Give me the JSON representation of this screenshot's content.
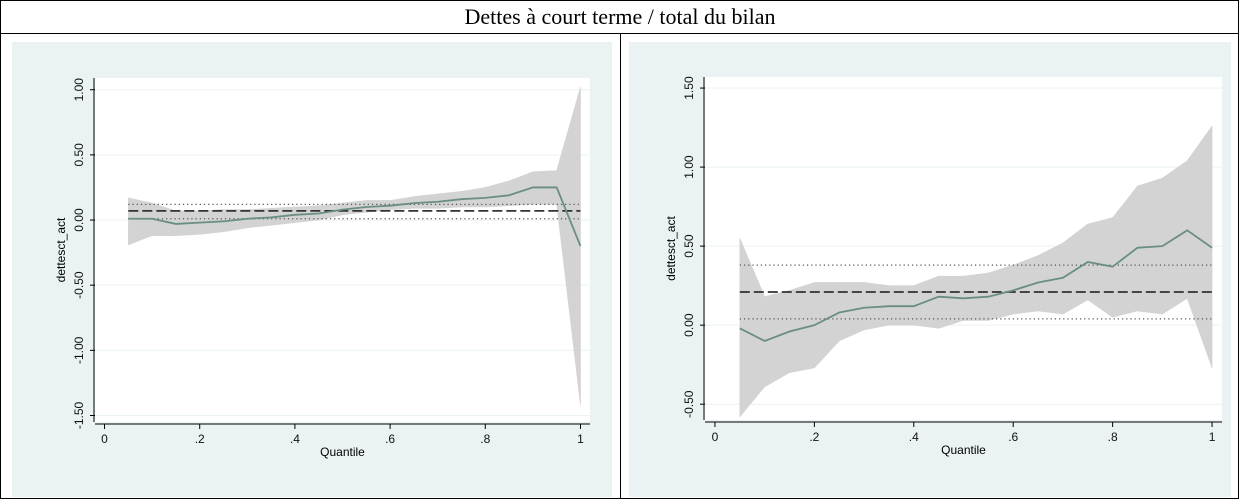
{
  "header": {
    "title": "Dettes à court terme / total du bilan"
  },
  "chart_data": [
    {
      "type": "line",
      "x_label": "Quantile",
      "y_label": "dettesct_act",
      "x": [
        0.05,
        0.1,
        0.15,
        0.2,
        0.25,
        0.3,
        0.35,
        0.4,
        0.45,
        0.5,
        0.55,
        0.6,
        0.65,
        0.7,
        0.75,
        0.8,
        0.85,
        0.9,
        0.95,
        1
      ],
      "series": [
        {
          "color": "#6a8f7f",
          "values": [
            0.01,
            0.01,
            -0.03,
            -0.02,
            -0.01,
            0.01,
            0.02,
            0.04,
            0.05,
            0.08,
            0.1,
            0.11,
            0.13,
            0.14,
            0.16,
            0.17,
            0.19,
            0.25,
            0.25,
            -0.2
          ]
        }
      ],
      "band": {
        "color": "#d3d3d3",
        "lower": [
          -0.19,
          -0.12,
          -0.12,
          -0.11,
          -0.09,
          -0.06,
          -0.04,
          -0.02,
          0.0,
          0.04,
          0.06,
          0.08,
          0.09,
          0.09,
          0.1,
          0.1,
          0.11,
          0.12,
          0.12,
          -1.42
        ],
        "upper": [
          0.17,
          0.13,
          0.07,
          0.07,
          0.08,
          0.08,
          0.09,
          0.1,
          0.11,
          0.13,
          0.15,
          0.15,
          0.18,
          0.2,
          0.22,
          0.25,
          0.3,
          0.37,
          0.38,
          1.02
        ]
      },
      "hlines": [
        {
          "value": 0.07,
          "style": "dashed"
        },
        {
          "value": 0.01,
          "style": "dotted"
        },
        {
          "value": 0.12,
          "style": "dotted"
        }
      ],
      "xlim": [
        -0.02,
        1.02
      ],
      "ylim": [
        -1.55,
        1.09
      ],
      "xticks": [
        0,
        {
          "value": 0.2,
          "label": ".2"
        },
        {
          "value": 0.4,
          "label": ".4"
        },
        {
          "value": 0.6,
          "label": ".6"
        },
        {
          "value": 0.8,
          "label": ".8"
        },
        1
      ],
      "yticks": [
        {
          "value": -1.5,
          "label": "-1.50"
        },
        {
          "value": -1,
          "label": "-1.00"
        },
        {
          "value": -0.5,
          "label": "-0.50"
        },
        {
          "value": 0,
          "label": "0.00"
        },
        {
          "value": 0.5,
          "label": "0.50"
        },
        {
          "value": 1,
          "label": "1.00"
        }
      ],
      "grid": true
    },
    {
      "type": "line",
      "x_label": "Quantile",
      "y_label": "dettesct_act",
      "x": [
        0.05,
        0.1,
        0.15,
        0.2,
        0.25,
        0.3,
        0.35,
        0.4,
        0.45,
        0.5,
        0.55,
        0.6,
        0.65,
        0.7,
        0.75,
        0.8,
        0.85,
        0.9,
        0.95,
        1
      ],
      "series": [
        {
          "color": "#6a8f7f",
          "values": [
            -0.02,
            -0.1,
            -0.04,
            0.0,
            0.08,
            0.11,
            0.12,
            0.12,
            0.18,
            0.17,
            0.18,
            0.22,
            0.27,
            0.3,
            0.4,
            0.37,
            0.49,
            0.5,
            0.6,
            0.49
          ]
        }
      ],
      "band": {
        "color": "#d3d3d3",
        "lower": [
          -0.58,
          -0.39,
          -0.3,
          -0.27,
          -0.1,
          -0.03,
          0.0,
          0.0,
          -0.02,
          0.03,
          0.03,
          0.07,
          0.09,
          0.07,
          0.16,
          0.05,
          0.09,
          0.07,
          0.17,
          -0.27
        ],
        "upper": [
          0.55,
          0.18,
          0.22,
          0.27,
          0.27,
          0.27,
          0.25,
          0.25,
          0.31,
          0.31,
          0.33,
          0.38,
          0.44,
          0.52,
          0.64,
          0.68,
          0.88,
          0.93,
          1.04,
          1.26
        ]
      },
      "hlines": [
        {
          "value": 0.21,
          "style": "dashed"
        },
        {
          "value": 0.38,
          "style": "dotted"
        },
        {
          "value": 0.04,
          "style": "dotted"
        }
      ],
      "xlim": [
        -0.02,
        1.02
      ],
      "ylim": [
        -0.6,
        1.57
      ],
      "xticks": [
        0,
        {
          "value": 0.2,
          "label": ".2"
        },
        {
          "value": 0.4,
          "label": ".4"
        },
        {
          "value": 0.6,
          "label": ".6"
        },
        {
          "value": 0.8,
          "label": ".8"
        },
        1
      ],
      "yticks": [
        {
          "value": -0.5,
          "label": "-0.50"
        },
        {
          "value": 0,
          "label": "0.00"
        },
        {
          "value": 0.5,
          "label": "0.50"
        },
        {
          "value": 1,
          "label": "1.00"
        },
        {
          "value": 1.5,
          "label": "1.50"
        }
      ],
      "grid": true
    }
  ]
}
